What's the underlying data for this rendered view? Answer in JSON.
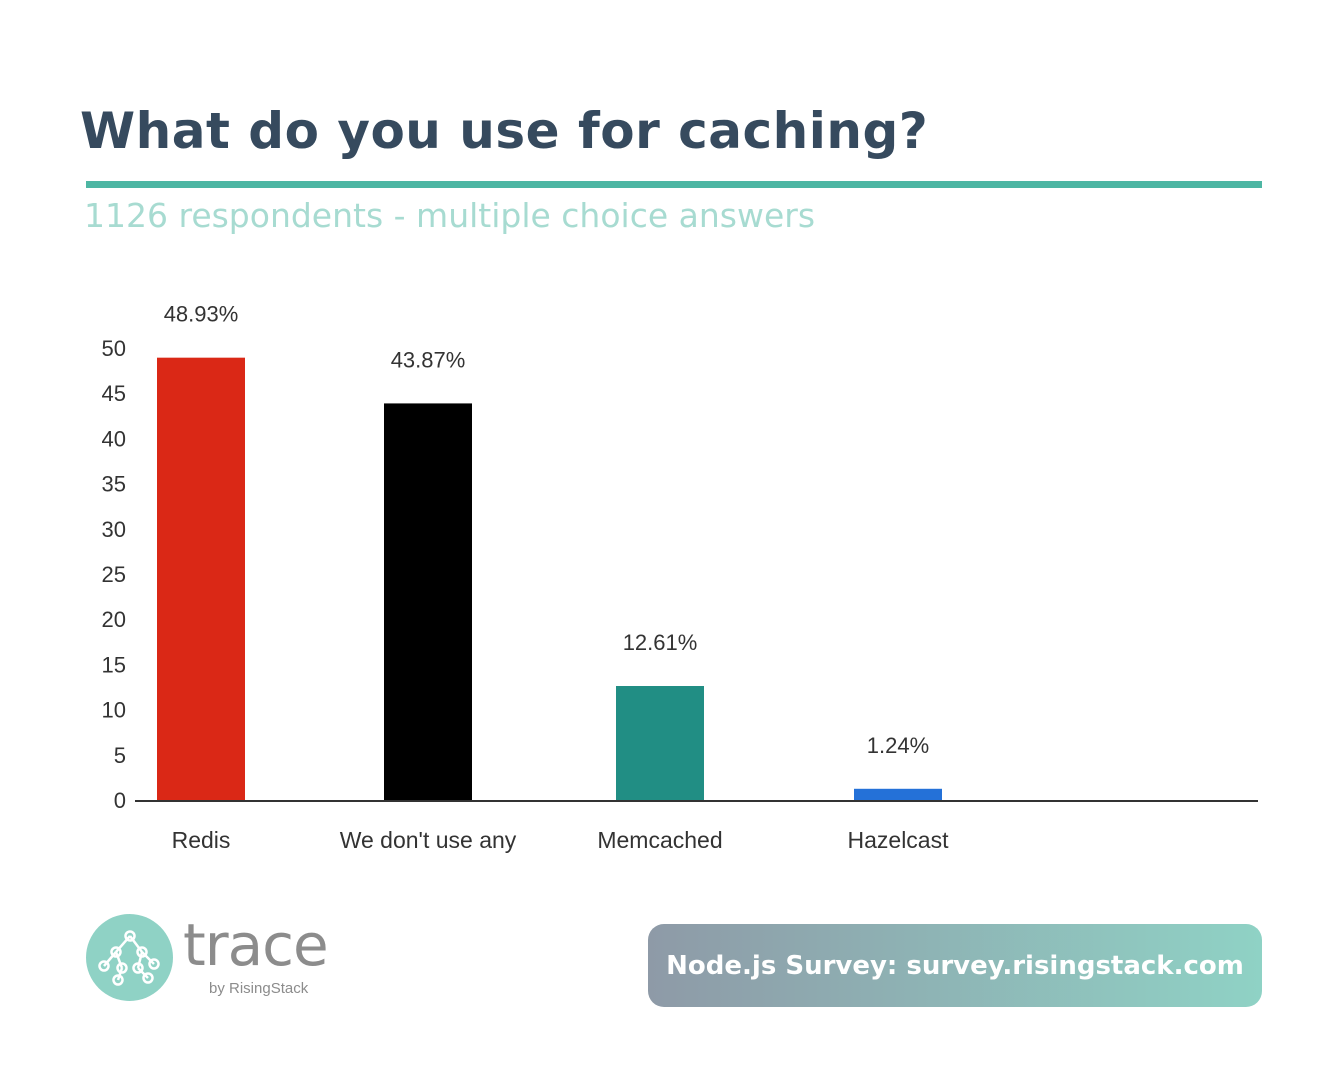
{
  "header": {
    "title": "What do you use for caching?",
    "subtitle": "1126 respondents - multiple choice answers"
  },
  "chart_data": {
    "type": "bar",
    "categories": [
      "Redis",
      "We don't use any",
      "Memcached",
      "Hazelcast"
    ],
    "values": [
      48.93,
      43.87,
      12.61,
      1.24
    ],
    "data_labels": [
      "48.93%",
      "43.87%",
      "12.61%",
      "1.24%"
    ],
    "colors": [
      "#da2816",
      "#000000",
      "#218e84",
      "#2471d8"
    ],
    "yticks": [
      "0",
      "5",
      "10",
      "15",
      "20",
      "25",
      "30",
      "35",
      "40",
      "45",
      "50"
    ],
    "ylim": [
      0,
      50
    ],
    "grid": false,
    "legend": "none"
  },
  "footer": {
    "logo_icon": "trace-network-icon",
    "logo_word": "trace",
    "logo_by": "by RisingStack",
    "survey_text": "Node.js Survey: survey.risingstack.com",
    "banner_colors": [
      "#8e9aa7",
      "#8fd2c5"
    ]
  }
}
